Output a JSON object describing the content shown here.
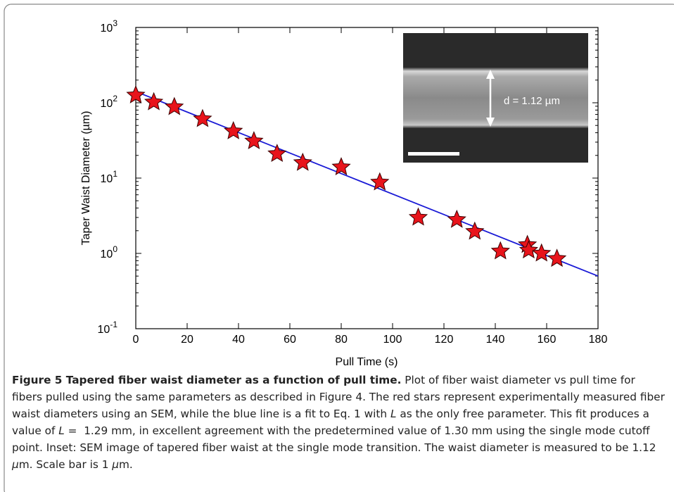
{
  "chart_data": {
    "type": "scatter",
    "xlabel": "Pull Time (s)",
    "ylabel": "Taper Waist Diameter (µm)",
    "xlim": [
      0,
      180
    ],
    "xticks": [
      0,
      20,
      40,
      60,
      80,
      100,
      120,
      140,
      160,
      180
    ],
    "ylim": [
      0.1,
      1000
    ],
    "yscale": "log",
    "yticks": [
      {
        "value": 0.1,
        "label": "10",
        "exponent": "-1"
      },
      {
        "value": 1,
        "label": "10",
        "exponent": "0"
      },
      {
        "value": 10,
        "label": "10",
        "exponent": "1"
      },
      {
        "value": 100,
        "label": "10",
        "exponent": "2"
      },
      {
        "value": 1000,
        "label": "10",
        "exponent": "3"
      }
    ],
    "series": [
      {
        "type": "scatter",
        "marker": "star",
        "color": "#e8141b",
        "x": [
          0,
          7,
          15,
          26,
          38,
          46,
          55,
          65,
          80,
          95,
          110,
          125,
          132,
          142,
          152.5,
          153,
          158,
          164
        ],
        "values": [
          126,
          102,
          88,
          61,
          42,
          31,
          21,
          16,
          14,
          8.8,
          3.0,
          2.8,
          1.95,
          1.07,
          1.3,
          1.1,
          1.0,
          0.85
        ]
      },
      {
        "type": "line",
        "color": "#1a1ad6",
        "x": [
          0,
          180
        ],
        "values": [
          141,
          0.5
        ]
      }
    ],
    "inset": {
      "label": "d = 1.12 µm"
    }
  },
  "caption": [
    {
      "text": "Figure 5 Tapered fiber waist diameter as a function of pull time.",
      "style": "bold"
    },
    {
      "text": " Plot of fiber waist diameter vs pull time for fibers pulled using the same parameters as described in Figure 4. The red stars represent experimentally measured fiber waist diameters using an SEM, while the blue line is a fit to Eq. 1 with ",
      "style": "normal"
    },
    {
      "text": "L",
      "style": "italic"
    },
    {
      "text": " as the only free parameter. This fit produces a value of ",
      "style": "normal"
    },
    {
      "text": "L",
      "style": "italic"
    },
    {
      "text": " =  1.29 mm, in excellent agreement with the predetermined value of 1.30 mm using the single mode cutoff point. Inset: SEM image of tapered fiber waist at the single mode transition. The waist diameter is measured to be 1.12 ",
      "style": "normal"
    },
    {
      "text": "μ",
      "style": "italic"
    },
    {
      "text": "m. Scale bar is 1 ",
      "style": "normal"
    },
    {
      "text": "μ",
      "style": "italic"
    },
    {
      "text": "m.",
      "style": "normal"
    }
  ]
}
